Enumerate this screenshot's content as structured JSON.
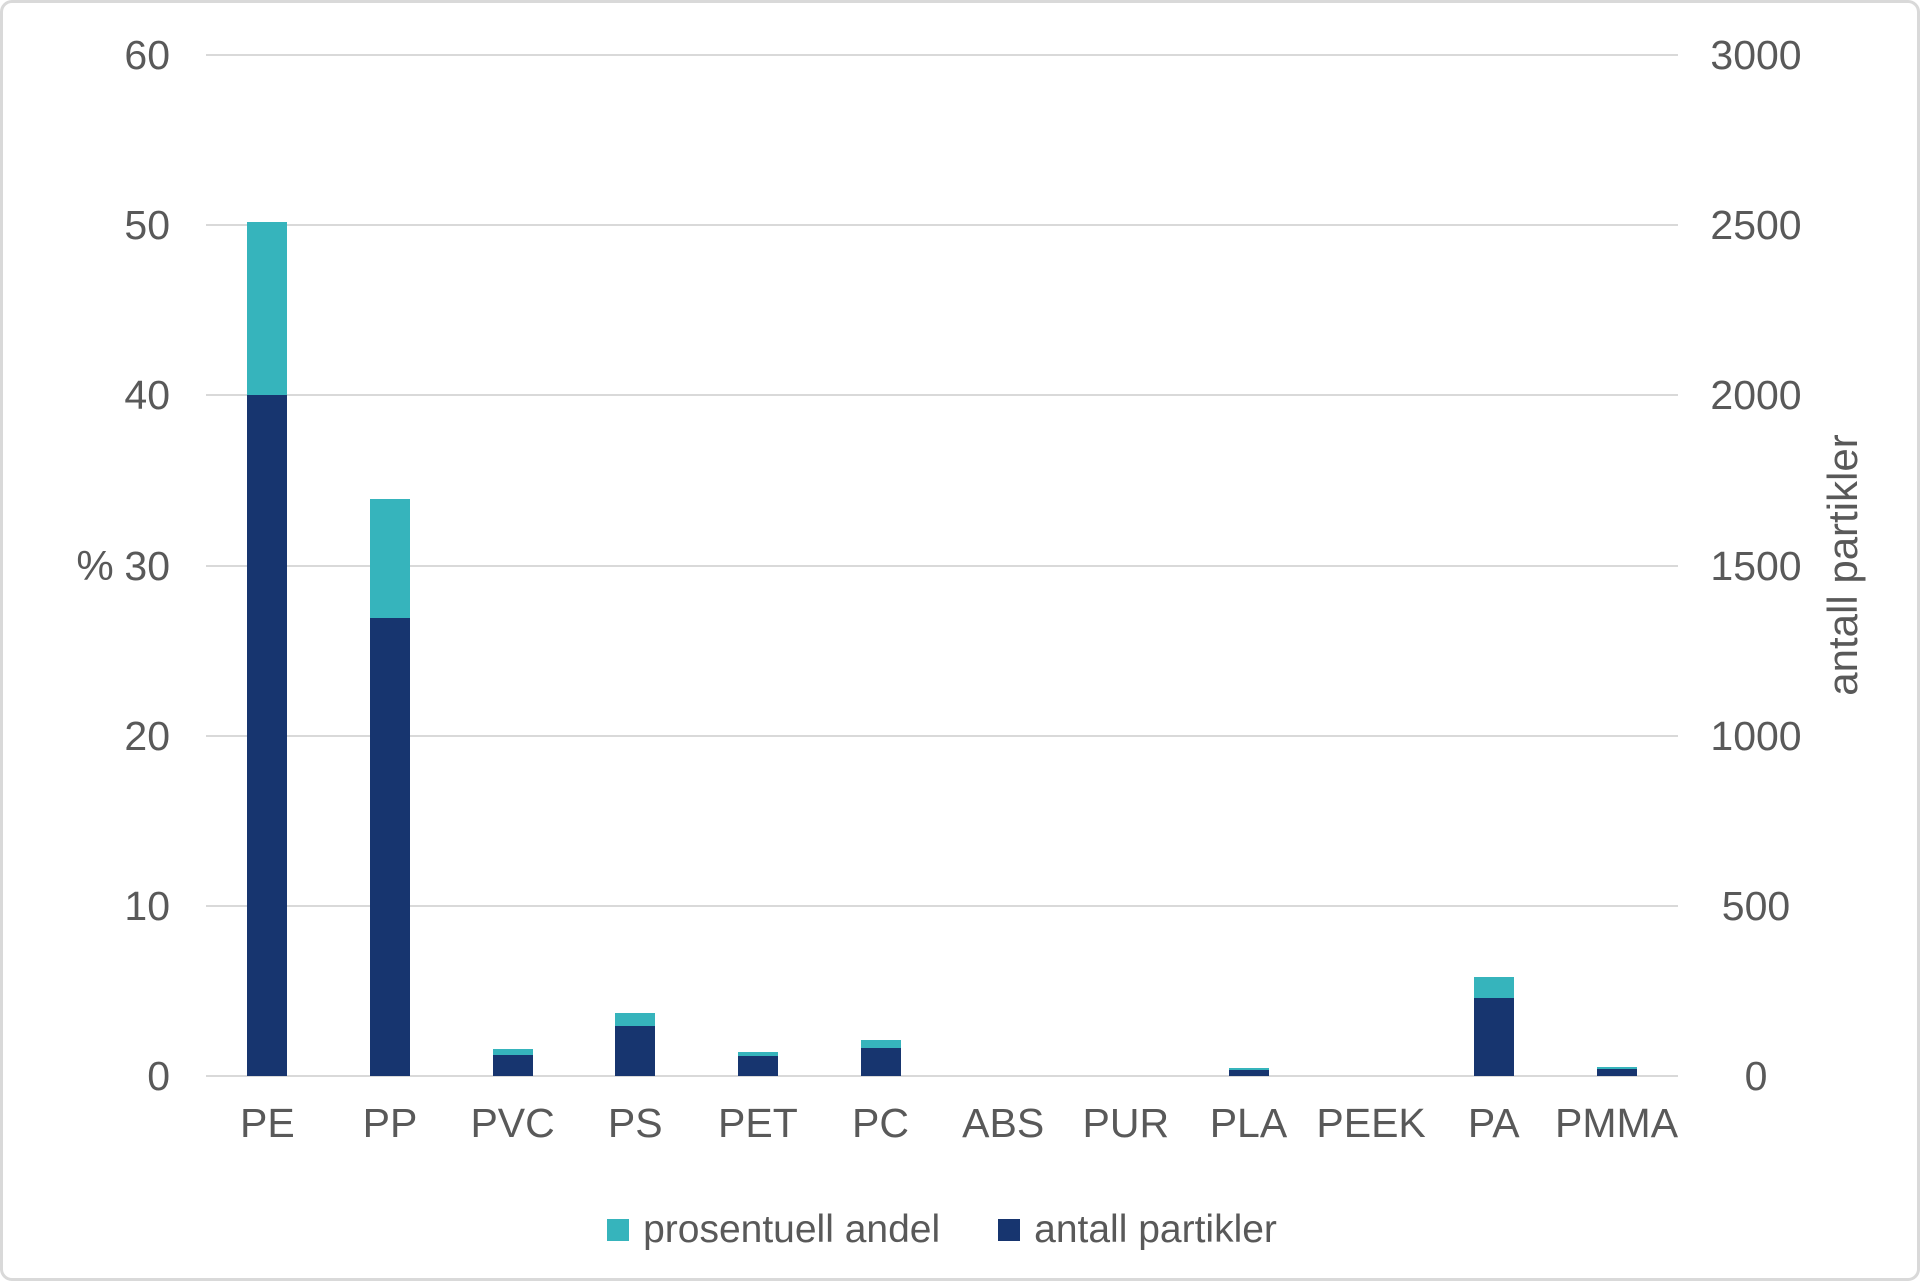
{
  "chart_data": {
    "type": "bar",
    "title": "",
    "categories": [
      "PE",
      "PP",
      "PVC",
      "PS",
      "PET",
      "PC",
      "ABS",
      "PUR",
      "PLA",
      "PEEK",
      "PA",
      "PMMA"
    ],
    "series": [
      {
        "name": "prosentuell andel",
        "axis": "left",
        "color": "#36b4bc",
        "values": [
          50.2,
          33.9,
          1.6,
          3.7,
          1.4,
          2.1,
          0,
          0,
          0.45,
          0,
          5.8,
          0.55
        ]
      },
      {
        "name": "antall partikler",
        "axis": "right",
        "color": "#17356f",
        "values": [
          2000,
          1345,
          62,
          147,
          58,
          82,
          0,
          0,
          17,
          0,
          229,
          21
        ]
      }
    ],
    "left_axis": {
      "title": "%",
      "ticks": [
        60,
        50,
        40,
        30,
        20,
        10,
        0
      ],
      "lim": [
        0,
        60
      ]
    },
    "right_axis": {
      "title": "antall partikler",
      "ticks": [
        3000,
        2500,
        2000,
        1500,
        1000,
        500,
        0
      ],
      "lim": [
        0,
        3000
      ]
    },
    "grid": true,
    "legend_position": "bottom",
    "legend": [
      "prosentuell andel",
      "antall partikler"
    ]
  },
  "colors": {
    "teal": "#36b4bc",
    "navy": "#17356f",
    "gridline": "#d9d9d9",
    "border": "#d9d9d9",
    "text": "#595959",
    "background": "#ffffff"
  }
}
